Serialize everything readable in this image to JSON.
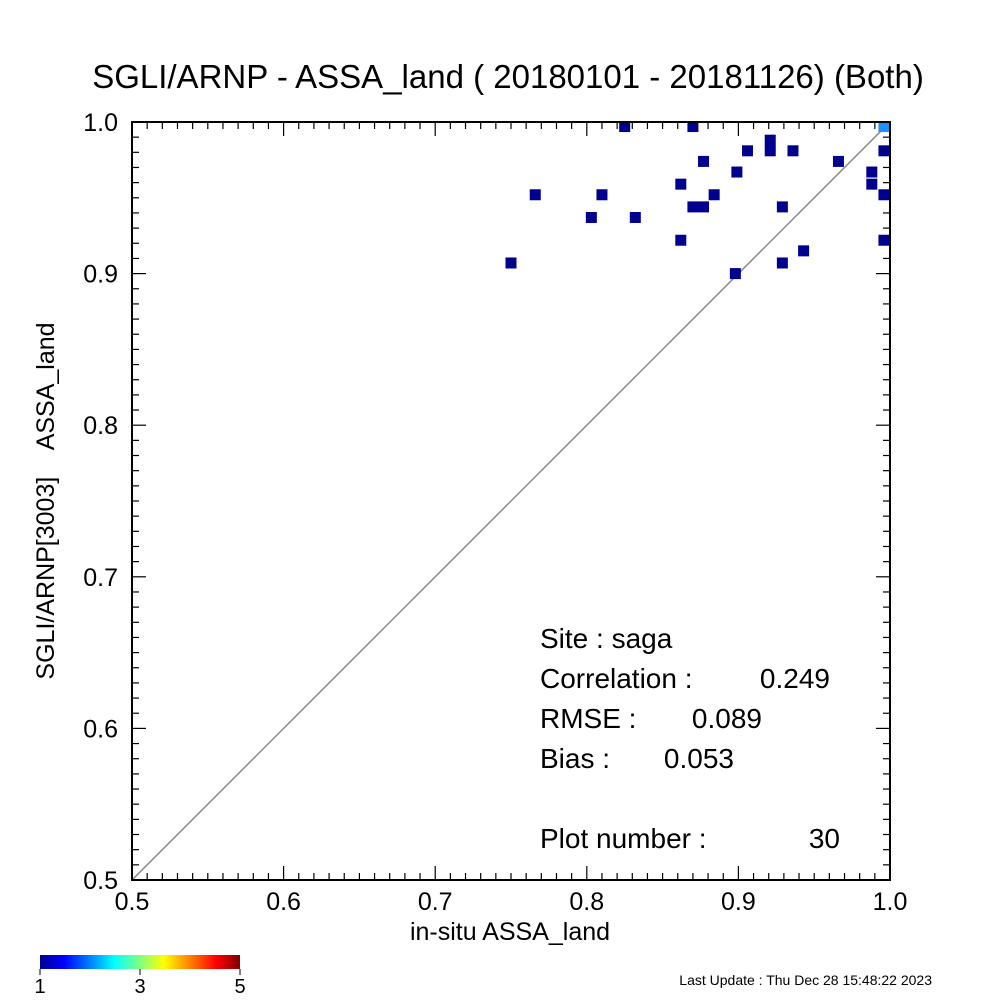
{
  "chart_data": {
    "type": "scatter",
    "title": "SGLI/ARNP - ASSA_land ( 20180101 - 20181126) (Both)",
    "xlabel": "in-situ ASSA_land",
    "ylabel": "SGLI/ARNP[3003]    ASSA_land",
    "xlim": [
      0.5,
      1.0
    ],
    "ylim": [
      0.5,
      1.0
    ],
    "x_ticks": [
      "0.5",
      "0.6",
      "0.7",
      "0.8",
      "0.9",
      "1.0"
    ],
    "y_ticks": [
      "0.5",
      "0.6",
      "0.7",
      "0.8",
      "0.9",
      "1.0"
    ],
    "reference_line": "1:1",
    "grid": false,
    "points": [
      {
        "x": 0.75,
        "y": 0.907,
        "count": 1
      },
      {
        "x": 0.766,
        "y": 0.952,
        "count": 1
      },
      {
        "x": 0.803,
        "y": 0.937,
        "count": 1
      },
      {
        "x": 0.81,
        "y": 0.952,
        "count": 1
      },
      {
        "x": 0.825,
        "y": 0.997,
        "count": 1
      },
      {
        "x": 0.832,
        "y": 0.937,
        "count": 1
      },
      {
        "x": 0.862,
        "y": 0.922,
        "count": 1
      },
      {
        "x": 0.862,
        "y": 0.959,
        "count": 1
      },
      {
        "x": 0.87,
        "y": 0.997,
        "count": 1
      },
      {
        "x": 0.87,
        "y": 0.944,
        "count": 1
      },
      {
        "x": 0.877,
        "y": 0.944,
        "count": 1
      },
      {
        "x": 0.877,
        "y": 0.974,
        "count": 1
      },
      {
        "x": 0.884,
        "y": 0.952,
        "count": 1
      },
      {
        "x": 0.898,
        "y": 0.9,
        "count": 1
      },
      {
        "x": 0.899,
        "y": 0.967,
        "count": 1
      },
      {
        "x": 0.906,
        "y": 0.981,
        "count": 1
      },
      {
        "x": 0.921,
        "y": 0.981,
        "count": 1
      },
      {
        "x": 0.921,
        "y": 0.988,
        "count": 1
      },
      {
        "x": 0.929,
        "y": 0.944,
        "count": 1
      },
      {
        "x": 0.929,
        "y": 0.907,
        "count": 1
      },
      {
        "x": 0.936,
        "y": 0.981,
        "count": 1
      },
      {
        "x": 0.943,
        "y": 0.915,
        "count": 1
      },
      {
        "x": 0.966,
        "y": 0.974,
        "count": 1
      },
      {
        "x": 0.988,
        "y": 0.967,
        "count": 1
      },
      {
        "x": 0.988,
        "y": 0.959,
        "count": 1
      },
      {
        "x": 0.996,
        "y": 0.981,
        "count": 1
      },
      {
        "x": 0.996,
        "y": 0.952,
        "count": 1
      },
      {
        "x": 0.996,
        "y": 0.922,
        "count": 1
      },
      {
        "x": 0.996,
        "y": 0.997,
        "count": 2
      }
    ],
    "colorbar": {
      "min": 1,
      "max": 5,
      "tick_labels": [
        "1",
        "3",
        "5"
      ],
      "colors": [
        "#00008f",
        "#0000ff",
        "#0080ff",
        "#00ffff",
        "#80ff80",
        "#ffff00",
        "#ff8000",
        "#ff0000",
        "#800000"
      ]
    }
  },
  "stats": {
    "site": "Site : saga",
    "correlation_label": "Correlation :",
    "correlation_value": "0.249",
    "rmse_label": "RMSE :",
    "rmse_value": "0.089",
    "bias_label": "Bias :",
    "bias_value": "0.053",
    "plot_number_label": "Plot number :",
    "plot_number_value": "30"
  },
  "footer": {
    "last_update": "Last Update : Thu Dec 28 15:48:22 2023"
  },
  "colors": {
    "marker_count_1": "#00008f",
    "marker_count_2": "#1e90ff",
    "diagonal": "#888888"
  }
}
